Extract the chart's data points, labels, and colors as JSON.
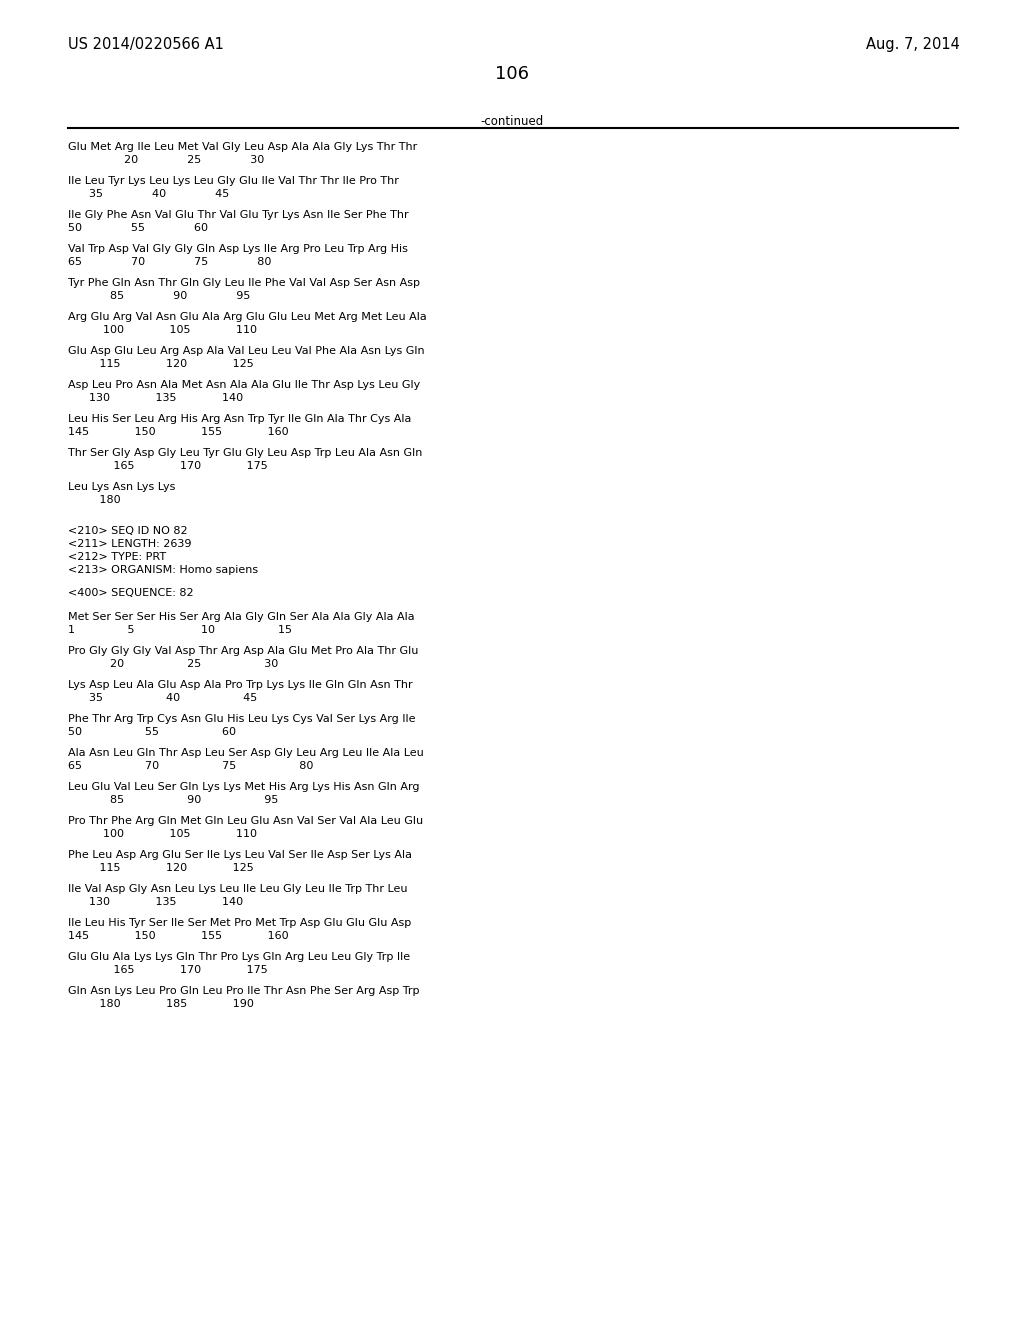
{
  "background_color": "#ffffff",
  "header_left": "US 2014/0220566 A1",
  "header_right": "Aug. 7, 2014",
  "page_number": "106",
  "continued_text": "-continued",
  "font_family": "Courier New",
  "header_font_family": "Times New Roman",
  "blocks_first": [
    [
      "Glu Met Arg Ile Leu Met Val Gly Leu Asp Ala Ala Gly Lys Thr Thr",
      "                20              25              30"
    ],
    [
      "Ile Leu Tyr Lys Leu Lys Leu Gly Glu Ile Val Thr Thr Ile Pro Thr",
      "      35              40              45"
    ],
    [
      "Ile Gly Phe Asn Val Glu Thr Val Glu Tyr Lys Asn Ile Ser Phe Thr",
      "50              55              60"
    ],
    [
      "Val Trp Asp Val Gly Gly Gln Asp Lys Ile Arg Pro Leu Trp Arg His",
      "65              70              75              80"
    ],
    [
      "Tyr Phe Gln Asn Thr Gln Gly Leu Ile Phe Val Val Asp Ser Asn Asp",
      "            85              90              95"
    ],
    [
      "Arg Glu Arg Val Asn Glu Ala Arg Glu Glu Leu Met Arg Met Leu Ala",
      "          100             105             110"
    ],
    [
      "Glu Asp Glu Leu Arg Asp Ala Val Leu Leu Val Phe Ala Asn Lys Gln",
      "         115             120             125"
    ],
    [
      "Asp Leu Pro Asn Ala Met Asn Ala Ala Glu Ile Thr Asp Lys Leu Gly",
      "      130             135             140"
    ],
    [
      "Leu His Ser Leu Arg His Arg Asn Trp Tyr Ile Gln Ala Thr Cys Ala",
      "145             150             155             160"
    ],
    [
      "Thr Ser Gly Asp Gly Leu Tyr Glu Gly Leu Asp Trp Leu Ala Asn Gln",
      "             165             170             175"
    ],
    [
      "Leu Lys Asn Lys Lys",
      "         180"
    ]
  ],
  "seq_info": [
    "<210> SEQ ID NO 82",
    "<211> LENGTH: 2639",
    "<212> TYPE: PRT",
    "<213> ORGANISM: Homo sapiens"
  ],
  "seq400": "<400> SEQUENCE: 82",
  "blocks_second": [
    [
      "Met Ser Ser Ser His Ser Arg Ala Gly Gln Ser Ala Ala Gly Ala Ala",
      "1               5                   10                  15"
    ],
    [
      "Pro Gly Gly Gly Val Asp Thr Arg Asp Ala Glu Met Pro Ala Thr Glu",
      "            20                  25                  30"
    ],
    [
      "Lys Asp Leu Ala Glu Asp Ala Pro Trp Lys Lys Ile Gln Gln Asn Thr",
      "      35                  40                  45"
    ],
    [
      "Phe Thr Arg Trp Cys Asn Glu His Leu Lys Cys Val Ser Lys Arg Ile",
      "50                  55                  60"
    ],
    [
      "Ala Asn Leu Gln Thr Asp Leu Ser Asp Gly Leu Arg Leu Ile Ala Leu",
      "65                  70                  75                  80"
    ],
    [
      "Leu Glu Val Leu Ser Gln Lys Lys Met His Arg Lys His Asn Gln Arg",
      "            85                  90                  95"
    ],
    [
      "Pro Thr Phe Arg Gln Met Gln Leu Glu Asn Val Ser Val Ala Leu Glu",
      "          100             105             110"
    ],
    [
      "Phe Leu Asp Arg Glu Ser Ile Lys Leu Val Ser Ile Asp Ser Lys Ala",
      "         115             120             125"
    ],
    [
      "Ile Val Asp Gly Asn Leu Lys Leu Ile Leu Gly Leu Ile Trp Thr Leu",
      "      130             135             140"
    ],
    [
      "Ile Leu His Tyr Ser Ile Ser Met Pro Met Trp Asp Glu Glu Glu Asp",
      "145             150             155             160"
    ],
    [
      "Glu Glu Ala Lys Lys Gln Thr Pro Lys Gln Arg Leu Leu Gly Trp Ile",
      "             165             170             175"
    ],
    [
      "Gln Asn Lys Leu Pro Gln Leu Pro Ile Thr Asn Phe Ser Arg Asp Trp",
      "         180             185             190"
    ]
  ]
}
